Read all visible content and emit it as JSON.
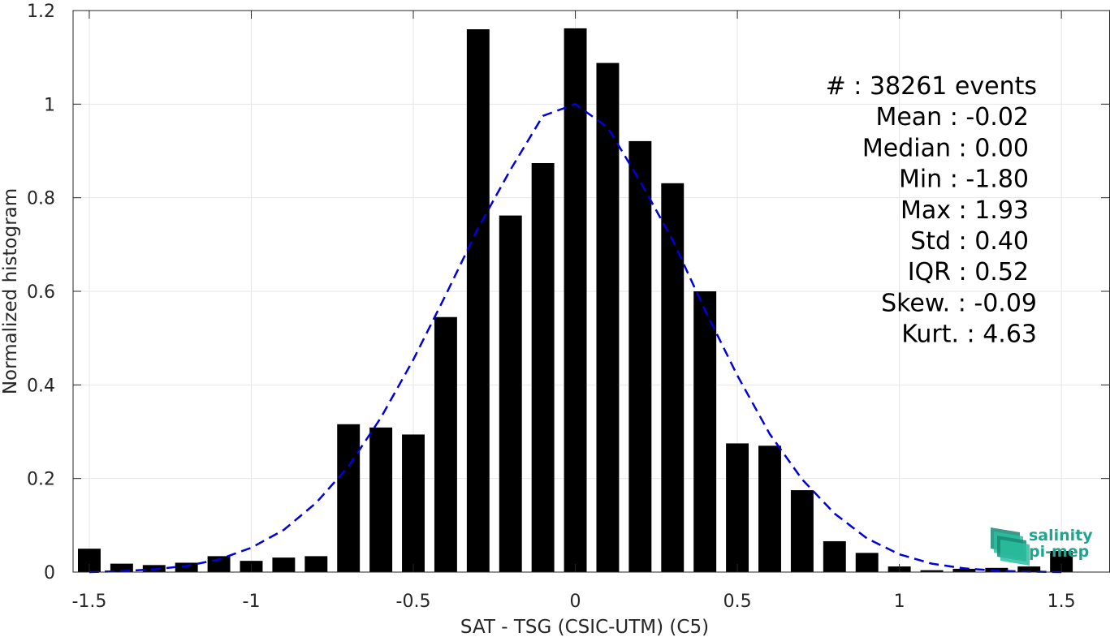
{
  "chart_data": {
    "type": "bar",
    "xlabel": "SAT - TSG (CSIC-UTM) (C5)",
    "ylabel": "Normalized histogram",
    "xlim": [
      -1.55,
      1.65
    ],
    "ylim": [
      0,
      1.2
    ],
    "xticks": [
      -1.5,
      -1,
      -0.5,
      0,
      0.5,
      1,
      1.5
    ],
    "xtick_labels": [
      "-1.5",
      "-1",
      "-0.5",
      "0",
      "0.5",
      "1",
      "1.5"
    ],
    "yticks": [
      0,
      0.2,
      0.4,
      0.6,
      0.8,
      1,
      1.2
    ],
    "ytick_labels": [
      "0",
      "0.2",
      "0.4",
      "0.6",
      "0.8",
      "1",
      "1.2"
    ],
    "grid": true,
    "bar_width": 0.07,
    "bar_color": "#000000",
    "x": [
      -1.5,
      -1.4,
      -1.3,
      -1.2,
      -1.1,
      -1.0,
      -0.9,
      -0.8,
      -0.7,
      -0.6,
      -0.5,
      -0.4,
      -0.3,
      -0.2,
      -0.1,
      0.0,
      0.1,
      0.2,
      0.3,
      0.4,
      0.5,
      0.6,
      0.7,
      0.8,
      0.9,
      1.0,
      1.1,
      1.2,
      1.3,
      1.4,
      1.5
    ],
    "values": [
      0.05,
      0.018,
      0.015,
      0.02,
      0.034,
      0.024,
      0.031,
      0.034,
      0.316,
      0.309,
      0.294,
      0.545,
      1.16,
      0.762,
      0.874,
      1.162,
      1.088,
      0.921,
      0.831,
      0.6,
      0.275,
      0.27,
      0.175,
      0.066,
      0.041,
      0.012,
      0.004,
      0.007,
      0.009,
      0.012,
      0.045
    ],
    "fit_curve": {
      "style": "dashed",
      "color": "#0000dd",
      "x": [
        -1.5,
        -1.4,
        -1.3,
        -1.2,
        -1.1,
        -1.0,
        -0.9,
        -0.8,
        -0.7,
        -0.6,
        -0.5,
        -0.4,
        -0.3,
        -0.2,
        -0.1,
        0.0,
        0.1,
        0.2,
        0.3,
        0.4,
        0.5,
        0.6,
        0.7,
        0.8,
        0.9,
        1.0,
        1.1,
        1.2,
        1.3,
        1.4,
        1.5
      ],
      "y": [
        0.0,
        0.002,
        0.006,
        0.013,
        0.027,
        0.052,
        0.09,
        0.148,
        0.226,
        0.33,
        0.454,
        0.592,
        0.735,
        0.86,
        0.975,
        1.0,
        0.95,
        0.835,
        0.71,
        0.56,
        0.42,
        0.295,
        0.198,
        0.125,
        0.072,
        0.038,
        0.018,
        0.008,
        0.003,
        0.001,
        0.0
      ]
    }
  },
  "stats": [
    {
      "label": "#",
      "sep": ":",
      "value": "38261 events"
    },
    {
      "label": "Mean",
      "sep": ":",
      "value": "-0.02"
    },
    {
      "label": "Median",
      "sep": ":",
      "value": "0.00"
    },
    {
      "label": "Min",
      "sep": ":",
      "value": "-1.80"
    },
    {
      "label": "Max",
      "sep": ":",
      "value": "1.93"
    },
    {
      "label": "Std",
      "sep": ":",
      "value": "0.40"
    },
    {
      "label": "IQR",
      "sep": ":",
      "value": "0.52"
    },
    {
      "label": "Skew.",
      "sep": ":",
      "value": "-0.09"
    },
    {
      "label": "Kurt.",
      "sep": ":",
      "value": "4.63"
    }
  ],
  "logo": {
    "line1": "salinity",
    "line2": "pi-mep",
    "color": "#1fa58e"
  }
}
